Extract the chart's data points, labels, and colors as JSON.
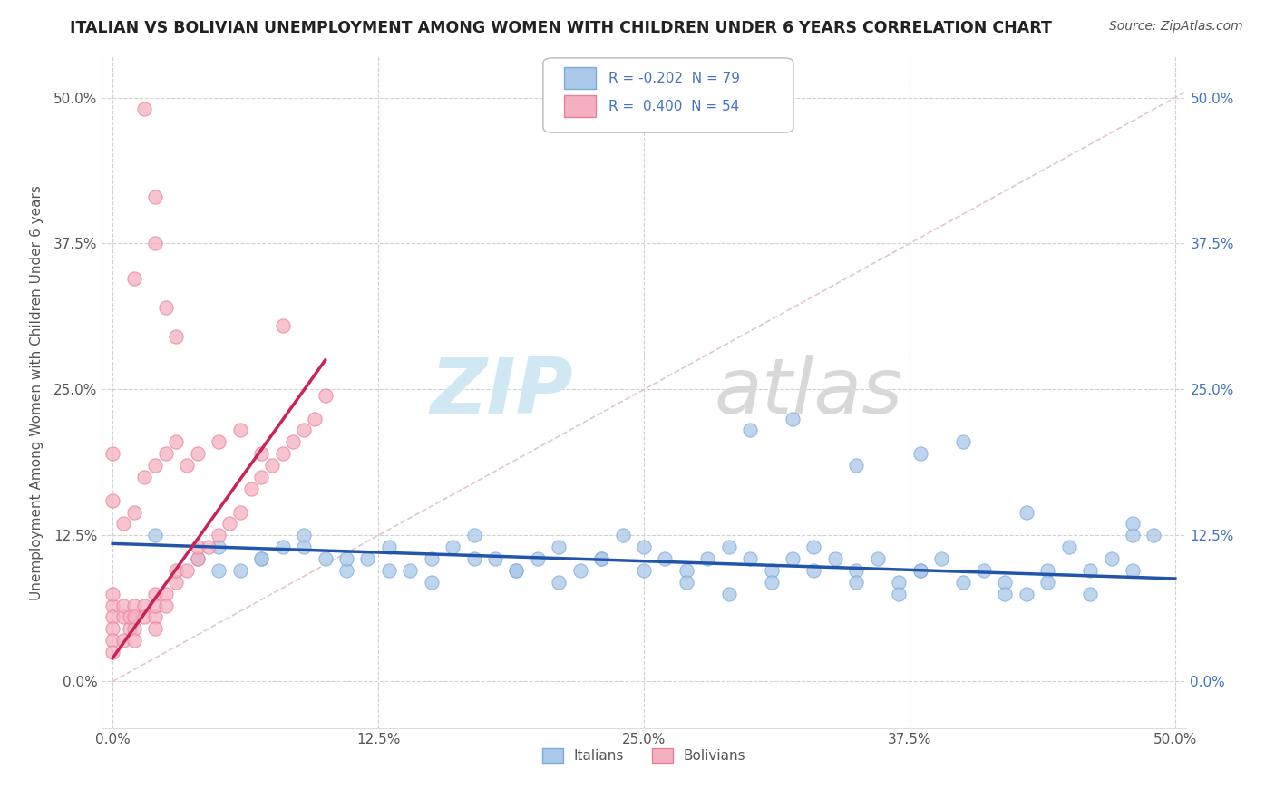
{
  "title": "ITALIAN VS BOLIVIAN UNEMPLOYMENT AMONG WOMEN WITH CHILDREN UNDER 6 YEARS CORRELATION CHART",
  "source": "Source: ZipAtlas.com",
  "ylabel": "Unemployment Among Women with Children Under 6 years",
  "xlim": [
    -0.005,
    0.505
  ],
  "ylim": [
    -0.04,
    0.535
  ],
  "xtick_vals": [
    0.0,
    0.125,
    0.25,
    0.375,
    0.5
  ],
  "xticklabels": [
    "0.0%",
    "12.5%",
    "25.0%",
    "37.5%",
    "50.0%"
  ],
  "ytick_vals": [
    0.0,
    0.125,
    0.25,
    0.375,
    0.5
  ],
  "yticklabels": [
    "0.0%",
    "12.5%",
    "25.0%",
    "37.5%",
    "50.0%"
  ],
  "italian_color": "#aac8e8",
  "bolivian_color": "#f4afc0",
  "italian_edge": "#7aabdb",
  "bolivian_edge": "#e8809a",
  "trend_italian_color": "#2255aa",
  "trend_bolivian_color": "#cc2255",
  "ref_line_color": "#e0c8c8",
  "background_color": "#ffffff",
  "watermark_zip_color": "#d0e8f4",
  "watermark_atlas_color": "#d8d8d8",
  "legend_italian_color": "#aac8e8",
  "legend_bolivian_color": "#f4afc0",
  "legend_text_color": "#4472c4",
  "right_axis_color": "#4472c4",
  "left_axis_color": "#555555",
  "italian_x": [
    0.02,
    0.04,
    0.05,
    0.06,
    0.07,
    0.08,
    0.09,
    0.1,
    0.11,
    0.12,
    0.13,
    0.14,
    0.15,
    0.16,
    0.17,
    0.18,
    0.19,
    0.2,
    0.21,
    0.22,
    0.23,
    0.24,
    0.25,
    0.26,
    0.27,
    0.28,
    0.29,
    0.3,
    0.31,
    0.32,
    0.33,
    0.34,
    0.35,
    0.36,
    0.37,
    0.38,
    0.39,
    0.4,
    0.41,
    0.42,
    0.43,
    0.44,
    0.45,
    0.46,
    0.47,
    0.48,
    0.49,
    0.05,
    0.07,
    0.09,
    0.11,
    0.13,
    0.15,
    0.17,
    0.19,
    0.21,
    0.23,
    0.25,
    0.27,
    0.29,
    0.31,
    0.33,
    0.35,
    0.37,
    0.38,
    0.4,
    0.42,
    0.44,
    0.46,
    0.48,
    0.3,
    0.32,
    0.35,
    0.38,
    0.43,
    0.48
  ],
  "italian_y": [
    0.125,
    0.105,
    0.115,
    0.095,
    0.105,
    0.115,
    0.125,
    0.105,
    0.095,
    0.105,
    0.115,
    0.095,
    0.105,
    0.115,
    0.125,
    0.105,
    0.095,
    0.105,
    0.115,
    0.095,
    0.105,
    0.125,
    0.115,
    0.105,
    0.095,
    0.105,
    0.115,
    0.105,
    0.095,
    0.105,
    0.115,
    0.105,
    0.095,
    0.105,
    0.085,
    0.095,
    0.105,
    0.205,
    0.095,
    0.085,
    0.075,
    0.095,
    0.115,
    0.095,
    0.105,
    0.125,
    0.125,
    0.095,
    0.105,
    0.115,
    0.105,
    0.095,
    0.085,
    0.105,
    0.095,
    0.085,
    0.105,
    0.095,
    0.085,
    0.075,
    0.085,
    0.095,
    0.085,
    0.075,
    0.095,
    0.085,
    0.075,
    0.085,
    0.075,
    0.095,
    0.215,
    0.225,
    0.185,
    0.195,
    0.145,
    0.135
  ],
  "bolivian_x": [
    0.0,
    0.0,
    0.0,
    0.0,
    0.0,
    0.0,
    0.005,
    0.005,
    0.005,
    0.008,
    0.008,
    0.01,
    0.01,
    0.01,
    0.01,
    0.015,
    0.015,
    0.02,
    0.02,
    0.02,
    0.02,
    0.025,
    0.025,
    0.03,
    0.03,
    0.035,
    0.04,
    0.04,
    0.045,
    0.05,
    0.055,
    0.06,
    0.065,
    0.07,
    0.075,
    0.08,
    0.085,
    0.09,
    0.095,
    0.1,
    0.0,
    0.0,
    0.005,
    0.01,
    0.015,
    0.02,
    0.025,
    0.03,
    0.035,
    0.04,
    0.05,
    0.06,
    0.07,
    0.08
  ],
  "bolivian_y": [
    0.065,
    0.055,
    0.075,
    0.045,
    0.035,
    0.025,
    0.055,
    0.065,
    0.035,
    0.045,
    0.055,
    0.065,
    0.045,
    0.055,
    0.035,
    0.065,
    0.055,
    0.075,
    0.055,
    0.065,
    0.045,
    0.075,
    0.065,
    0.085,
    0.095,
    0.095,
    0.105,
    0.115,
    0.115,
    0.125,
    0.135,
    0.145,
    0.165,
    0.175,
    0.185,
    0.195,
    0.205,
    0.215,
    0.225,
    0.245,
    0.155,
    0.195,
    0.135,
    0.145,
    0.175,
    0.185,
    0.195,
    0.205,
    0.185,
    0.195,
    0.205,
    0.215,
    0.195,
    0.305
  ],
  "bolivian_outliers_x": [
    0.015,
    0.02,
    0.025,
    0.03,
    0.01,
    0.02
  ],
  "bolivian_outliers_y": [
    0.49,
    0.415,
    0.32,
    0.295,
    0.345,
    0.375
  ],
  "trend_italian_x0": 0.0,
  "trend_italian_x1": 0.5,
  "trend_italian_y0": 0.118,
  "trend_italian_y1": 0.088,
  "trend_bolivian_x0": 0.0,
  "trend_bolivian_x1": 0.1,
  "trend_bolivian_y0": 0.02,
  "trend_bolivian_y1": 0.275
}
